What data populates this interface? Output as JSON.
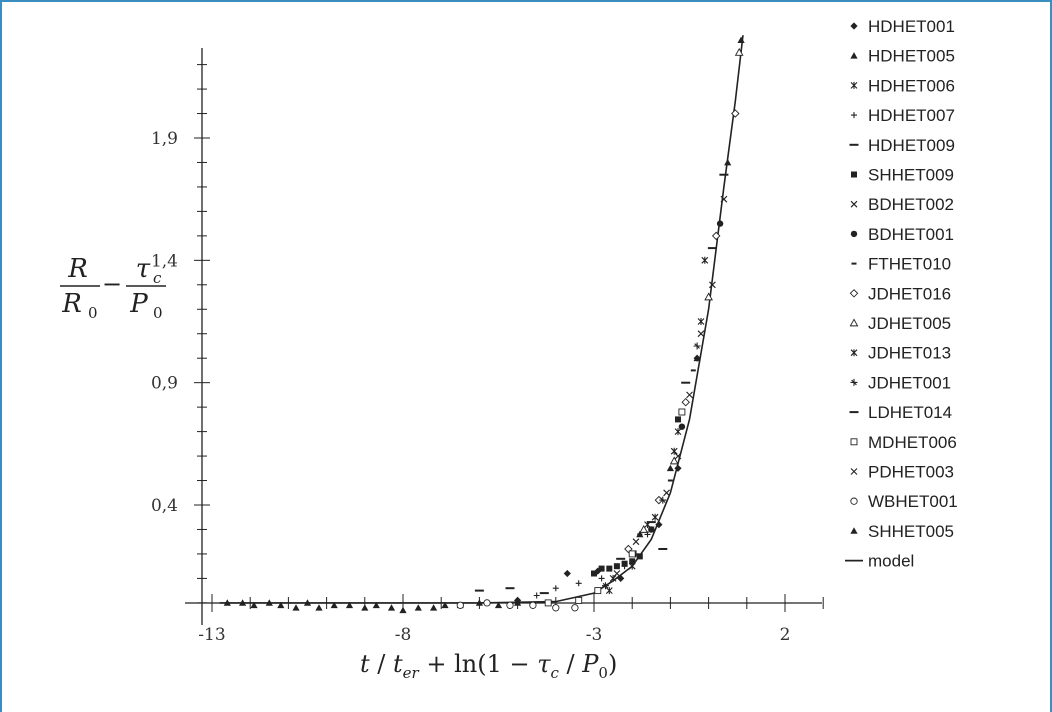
{
  "chart_data": {
    "type": "scatter",
    "title": "",
    "xlim": [
      -13,
      3.5
    ],
    "ylim": [
      -0.1,
      2.4
    ],
    "x_ticks": [
      "-13",
      "-8",
      "-3",
      "2"
    ],
    "y_ticks": [
      "0,4",
      "0,9",
      "1,4",
      "1,9"
    ],
    "grid": false,
    "legend_position": "right",
    "ylabel": {
      "frac1_num": "R",
      "frac1_den": "R",
      "frac1_den_sub": "0",
      "minus": "−",
      "frac2_num": "τ",
      "frac2_num_sub": "c",
      "frac2_den": "P",
      "frac2_den_sub": "0"
    },
    "xlabel": {
      "t": "t",
      "slash1": " / ",
      "t2": "t",
      "t2_sub": "er",
      "plus": " + ",
      "ln": "ln(1 − ",
      "tau": "τ",
      "tau_sub": "c",
      "slash2": " / ",
      "p": "P",
      "p_sub": "0",
      "close": ")"
    },
    "series": [
      {
        "name": "HDHET001",
        "marker": "diamond",
        "points": [
          [
            -5.0,
            0.01
          ],
          [
            -3.7,
            0.12
          ],
          [
            -2.9,
            0.13
          ],
          [
            -2.3,
            0.1
          ],
          [
            -1.3,
            0.32
          ],
          [
            -0.8,
            0.55
          ],
          [
            -0.3,
            1.0
          ]
        ]
      },
      {
        "name": "HDHET005",
        "marker": "triangle",
        "points": [
          [
            -12.6,
            0.0
          ],
          [
            -12.2,
            0.0
          ],
          [
            -11.9,
            -0.01
          ],
          [
            -11.5,
            0.0
          ],
          [
            -11.2,
            -0.01
          ],
          [
            -10.8,
            -0.02
          ],
          [
            -10.5,
            0.0
          ],
          [
            -10.2,
            -0.02
          ],
          [
            -9.8,
            -0.01
          ],
          [
            -9.4,
            -0.01
          ],
          [
            -9.0,
            -0.02
          ],
          [
            -8.7,
            -0.01
          ],
          [
            -8.3,
            -0.02
          ],
          [
            -8.0,
            -0.03
          ],
          [
            -7.6,
            -0.02
          ],
          [
            -7.2,
            -0.02
          ],
          [
            -6.9,
            -0.01
          ],
          [
            -6.5,
            -0.01
          ],
          [
            -6.0,
            0.0
          ],
          [
            -5.5,
            -0.01
          ],
          [
            -5.0,
            0.0
          ]
        ]
      },
      {
        "name": "HDHET006",
        "marker": "x-star",
        "points": [
          [
            -2.6,
            0.05
          ],
          [
            -2.0,
            0.15
          ],
          [
            -1.4,
            0.35
          ],
          [
            -0.8,
            0.7
          ],
          [
            -0.1,
            1.4
          ]
        ]
      },
      {
        "name": "HDHET007",
        "marker": "plus",
        "points": [
          [
            -4.5,
            0.03
          ],
          [
            -4.0,
            0.06
          ],
          [
            -3.4,
            0.08
          ],
          [
            -2.8,
            0.1
          ],
          [
            -2.2,
            0.15
          ],
          [
            -1.6,
            0.28
          ]
        ]
      },
      {
        "name": "HDHET009",
        "marker": "dash",
        "points": [
          [
            -6.0,
            0.05
          ],
          [
            -5.2,
            0.06
          ],
          [
            -4.3,
            0.04
          ],
          [
            -1.2,
            0.22
          ],
          [
            0.4,
            1.75
          ]
        ]
      },
      {
        "name": "SHHET009",
        "marker": "square",
        "points": [
          [
            -3.0,
            0.12
          ],
          [
            -2.8,
            0.14
          ],
          [
            -2.6,
            0.14
          ],
          [
            -2.4,
            0.15
          ],
          [
            -2.2,
            0.16
          ],
          [
            -2.0,
            0.17
          ],
          [
            -1.8,
            0.19
          ],
          [
            -0.8,
            0.75
          ]
        ]
      },
      {
        "name": "BDHET002",
        "marker": "x",
        "points": [
          [
            -1.9,
            0.25
          ],
          [
            -1.1,
            0.45
          ],
          [
            -0.5,
            0.85
          ],
          [
            0.1,
            1.3
          ]
        ]
      },
      {
        "name": "BDHET001",
        "marker": "circle",
        "points": [
          [
            -1.5,
            0.3
          ],
          [
            -0.7,
            0.72
          ],
          [
            0.3,
            1.55
          ]
        ]
      },
      {
        "name": "FTHET010",
        "marker": "short-dash",
        "points": [
          [
            -1.8,
            0.28
          ],
          [
            -1.0,
            0.5
          ],
          [
            -0.4,
            0.95
          ]
        ]
      },
      {
        "name": "JDHET016",
        "marker": "diamond-open",
        "points": [
          [
            -2.1,
            0.22
          ],
          [
            -1.3,
            0.42
          ],
          [
            -0.6,
            0.82
          ],
          [
            0.2,
            1.5
          ],
          [
            0.7,
            2.0
          ]
        ]
      },
      {
        "name": "JDHET005",
        "marker": "triangle-open",
        "points": [
          [
            -1.7,
            0.3
          ],
          [
            -0.9,
            0.58
          ],
          [
            0.0,
            1.25
          ],
          [
            0.8,
            2.25
          ]
        ]
      },
      {
        "name": "JDHET013",
        "marker": "x-star",
        "points": [
          [
            -2.5,
            0.1
          ],
          [
            -1.6,
            0.32
          ],
          [
            -0.9,
            0.62
          ],
          [
            -0.2,
            1.15
          ]
        ]
      },
      {
        "name": "JDHET001",
        "marker": "plus-star",
        "points": [
          [
            -2.7,
            0.07
          ],
          [
            -1.9,
            0.2
          ],
          [
            -1.2,
            0.42
          ],
          [
            -0.3,
            1.05
          ]
        ]
      },
      {
        "name": "LDHET014",
        "marker": "dash",
        "points": [
          [
            -2.3,
            0.18
          ],
          [
            -1.5,
            0.33
          ],
          [
            -0.6,
            0.9
          ],
          [
            0.1,
            1.45
          ]
        ]
      },
      {
        "name": "MDHET006",
        "marker": "square-open",
        "points": [
          [
            -4.2,
            0.0
          ],
          [
            -3.4,
            0.01
          ],
          [
            -2.9,
            0.05
          ],
          [
            -2.0,
            0.2
          ],
          [
            -0.7,
            0.78
          ]
        ]
      },
      {
        "name": "PDHET003",
        "marker": "x",
        "points": [
          [
            -2.4,
            0.12
          ],
          [
            -1.5,
            0.3
          ],
          [
            -0.8,
            0.6
          ],
          [
            -0.2,
            1.1
          ],
          [
            0.4,
            1.65
          ]
        ]
      },
      {
        "name": "WBHET001",
        "marker": "circle-open",
        "points": [
          [
            -6.5,
            -0.01
          ],
          [
            -5.8,
            0.0
          ],
          [
            -5.2,
            -0.01
          ],
          [
            -4.6,
            -0.01
          ],
          [
            -4.0,
            -0.02
          ],
          [
            -3.5,
            -0.02
          ]
        ]
      },
      {
        "name": "SHHET005",
        "marker": "triangle",
        "points": [
          [
            -1.8,
            0.28
          ],
          [
            -1.0,
            0.55
          ],
          [
            -0.3,
            1.0
          ],
          [
            0.5,
            1.8
          ],
          [
            0.85,
            2.3
          ]
        ]
      }
    ],
    "model": {
      "name": "model",
      "points": [
        [
          -12.8,
          0.0
        ],
        [
          -6.0,
          0.0
        ],
        [
          -4.0,
          0.005
        ],
        [
          -3.0,
          0.04
        ],
        [
          -2.5,
          0.09
        ],
        [
          -2.0,
          0.15
        ],
        [
          -1.5,
          0.26
        ],
        [
          -1.0,
          0.45
        ],
        [
          -0.5,
          0.75
        ],
        [
          0.0,
          1.2
        ],
        [
          0.4,
          1.7
        ],
        [
          0.7,
          2.05
        ],
        [
          0.9,
          2.32
        ]
      ]
    }
  }
}
